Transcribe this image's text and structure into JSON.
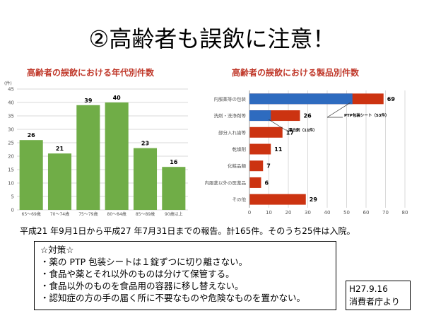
{
  "title": "②高齢者も誤飲に注意！",
  "chart_data": [
    {
      "type": "bar",
      "title": "高齢者の誤飲における年代別件数",
      "ylabel": "(件)",
      "ylim": [
        0,
        45
      ],
      "yticks": [
        0,
        5,
        10,
        15,
        20,
        25,
        30,
        35,
        40,
        45
      ],
      "categories": [
        "65〜69歳",
        "70〜74歳",
        "75〜79歳",
        "80〜84歳",
        "85〜89歳",
        "90歳以上"
      ],
      "values": [
        26,
        21,
        39,
        40,
        23,
        16
      ],
      "colors": {
        "bar": "#70ad47"
      }
    },
    {
      "type": "bar",
      "orientation": "horizontal",
      "title": "高齢者の誤飲における製品別件数",
      "xlim": [
        0,
        80
      ],
      "xticks": [
        0,
        10,
        20,
        30,
        40,
        50,
        60,
        70,
        80
      ],
      "categories": [
        "内服薬等の包装",
        "洗剤・洗浄剤等",
        "部分入れ歯等",
        "乾燥剤",
        "化粧品類",
        "内服薬以外の医薬品",
        "その他"
      ],
      "values": [
        69,
        26,
        17,
        11,
        7,
        6,
        29
      ],
      "breakdown": [
        {
          "category": "内服薬等の包装",
          "value": 53,
          "label": "PTP包装シート（53件）"
        },
        {
          "category": "洗剤・洗浄剤等",
          "value": 11,
          "label": "漂白剤（11件）"
        }
      ],
      "colors": {
        "total": "#cc3311",
        "breakdown": "#2e6bbf"
      }
    }
  ],
  "note": "平成21 年9月1日から平成27 年7月31日までの報告。計165件。そのうち25件は入院。",
  "measures": {
    "heading": "☆対策☆",
    "items": [
      "・薬の PTP 包装シートは１錠ずつに切り離さない。",
      "・食品や薬とそれ以外のものは分けて保管する。",
      "・食品以外のものを食品用の容器に移し替えない。",
      "・認知症の方の手の届く所に不要なものや危険なものを置かない。"
    ]
  },
  "source": {
    "date": "H27.9.16",
    "agency": "消費者庁より"
  }
}
